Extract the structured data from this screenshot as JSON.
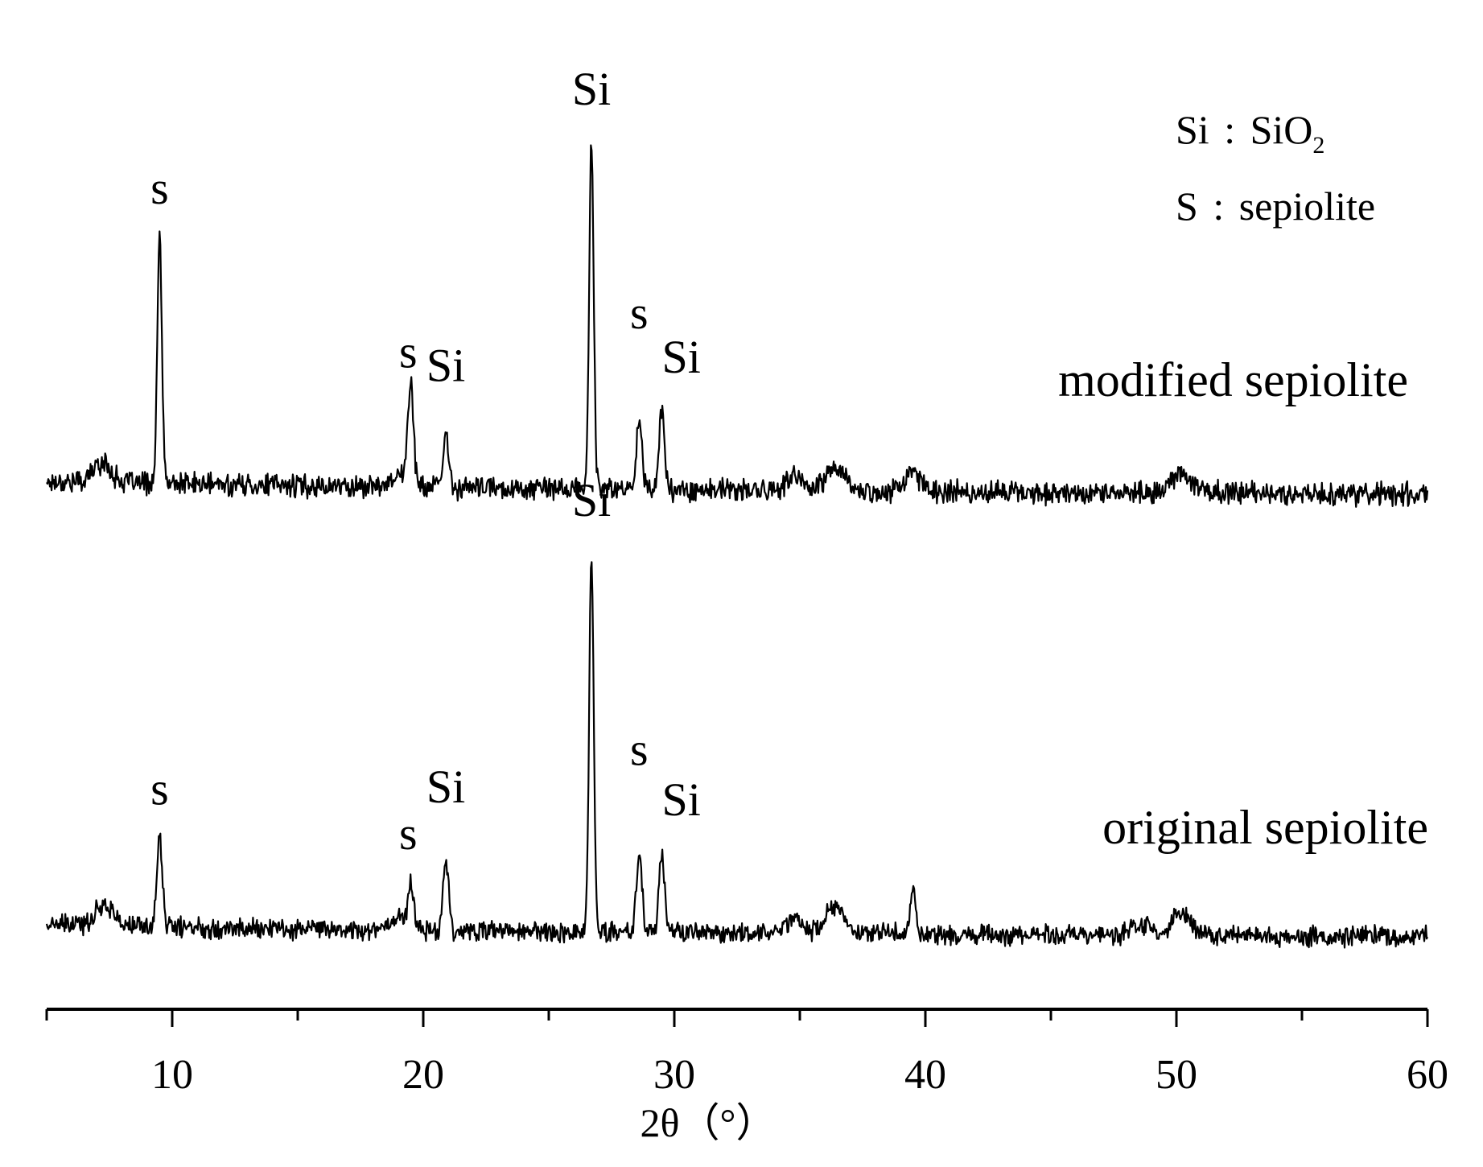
{
  "chart_data": {
    "type": "line",
    "xlabel": "2θ（°）",
    "xlim": [
      5,
      60
    ],
    "x_ticks": [
      10,
      20,
      30,
      40,
      50,
      60
    ],
    "y_axis": "none",
    "grid": false,
    "legend": {
      "position": "top-right",
      "entries": [
        {
          "symbol": "Si",
          "sep": ":",
          "name_base": "SiO",
          "name_sub": "2"
        },
        {
          "symbol": "S",
          "sep": ":",
          "name": "sepiolite"
        }
      ]
    },
    "series": [
      {
        "name": "modified sepiolite",
        "offset": "top",
        "peaks": [
          {
            "x": 7.2,
            "y": 8
          },
          {
            "x": 9.5,
            "y": 100
          },
          {
            "x": 19.0,
            "y": 5
          },
          {
            "x": 19.5,
            "y": 42
          },
          {
            "x": 20.9,
            "y": 21
          },
          {
            "x": 26.7,
            "y": 140
          },
          {
            "x": 28.6,
            "y": 30
          },
          {
            "x": 29.5,
            "y": 32
          },
          {
            "x": 34.8,
            "y": 5
          },
          {
            "x": 36.4,
            "y": 10
          },
          {
            "x": 39.5,
            "y": 7
          },
          {
            "x": 50.2,
            "y": 9
          }
        ],
        "peak_labels": [
          {
            "text": "s",
            "x": 9.5
          },
          {
            "text": "s",
            "x": 19.4
          },
          {
            "text": "Si",
            "x": 20.9
          },
          {
            "text": "Si",
            "x": 26.7
          },
          {
            "text": "s",
            "x": 28.6
          },
          {
            "text": "Si",
            "x": 29.7
          }
        ]
      },
      {
        "name": "original sepiolite",
        "offset": "bottom",
        "peaks": [
          {
            "x": 7.3,
            "y": 10
          },
          {
            "x": 9.5,
            "y": 40
          },
          {
            "x": 19.0,
            "y": 6
          },
          {
            "x": 19.5,
            "y": 20
          },
          {
            "x": 20.9,
            "y": 33
          },
          {
            "x": 26.7,
            "y": 170
          },
          {
            "x": 28.6,
            "y": 36
          },
          {
            "x": 29.5,
            "y": 36
          },
          {
            "x": 34.8,
            "y": 7
          },
          {
            "x": 36.4,
            "y": 12
          },
          {
            "x": 39.5,
            "y": 18
          },
          {
            "x": 48.6,
            "y": 5
          },
          {
            "x": 50.2,
            "y": 10
          }
        ],
        "peak_labels": [
          {
            "text": "s",
            "x": 9.5
          },
          {
            "text": "s",
            "x": 19.4
          },
          {
            "text": "Si",
            "x": 20.9
          },
          {
            "text": "Si",
            "x": 26.7
          },
          {
            "text": "s",
            "x": 28.6
          },
          {
            "text": "Si",
            "x": 29.7
          }
        ]
      }
    ]
  }
}
